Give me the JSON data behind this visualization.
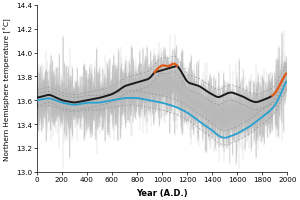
{
  "title": "",
  "xlabel": "Year (A.D.)",
  "ylabel": "Northern Hemisphere temperature [°C]",
  "xlim": [
    0,
    2000
  ],
  "ylim": [
    13.0,
    14.4
  ],
  "yticks": [
    13.0,
    13.2,
    13.4,
    13.6,
    13.8,
    14.0,
    14.2,
    14.4
  ],
  "xticks": [
    0,
    200,
    400,
    600,
    800,
    1000,
    1200,
    1400,
    1600,
    1800,
    2000
  ],
  "raw_color": "#b8b8b8",
  "band_color": "#909090",
  "black_line_color": "#1a1a1a",
  "orange_line_color": "#e05818",
  "blue_line_color": "#28a0d0",
  "background_color": "#ffffff",
  "seed": 42
}
